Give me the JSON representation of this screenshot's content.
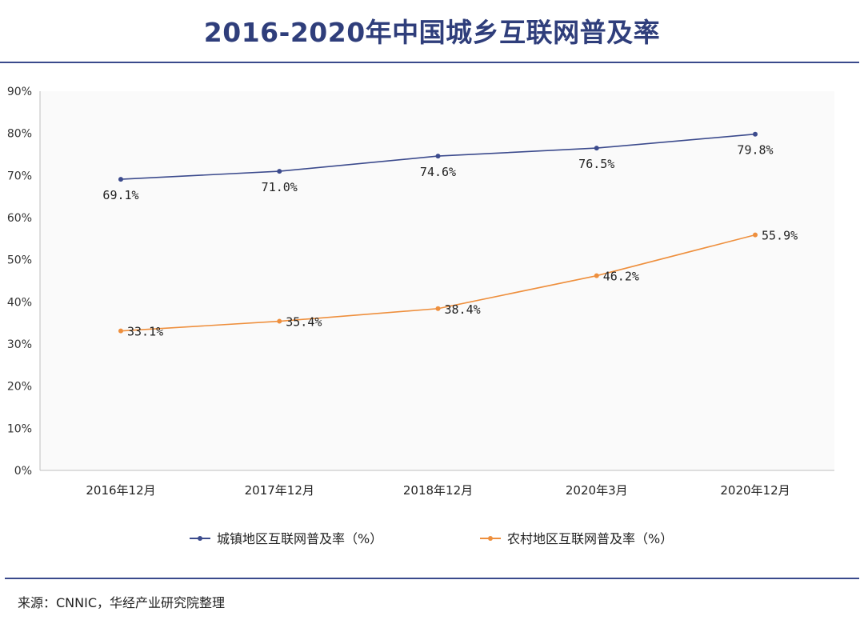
{
  "title": "2016-2020年中国城乡互联网普及率",
  "source": "来源：CNNIC，华经产业研究院整理",
  "colors": {
    "title": "#2f3e7b",
    "rule": "#3a4a8c",
    "urban": "#3c4b8d",
    "rural": "#ee8f3d",
    "plot_bg": "#fafafa",
    "axis": "#bfbfbf"
  },
  "chart_data": {
    "type": "line",
    "categories": [
      "2016年12月",
      "2017年12月",
      "2018年12月",
      "2020年3月",
      "2020年12月"
    ],
    "series": [
      {
        "name": "城镇地区互联网普及率（%）",
        "values": [
          69.1,
          71.0,
          74.6,
          76.5,
          79.8
        ],
        "labels": [
          "69.1%",
          "71.0%",
          "74.6%",
          "76.5%",
          "79.8%"
        ],
        "color": "#3c4b8d"
      },
      {
        "name": "农村地区互联网普及率（%）",
        "values": [
          33.1,
          35.4,
          38.4,
          46.2,
          55.9
        ],
        "labels": [
          "33.1%",
          "35.4%",
          "38.4%",
          "46.2%",
          "55.9%"
        ],
        "color": "#ee8f3d"
      }
    ],
    "y_ticks": [
      "0%",
      "10%",
      "20%",
      "30%",
      "40%",
      "50%",
      "60%",
      "70%",
      "80%",
      "90%"
    ],
    "ylim": [
      0,
      90
    ],
    "legend_position": "bottom"
  }
}
